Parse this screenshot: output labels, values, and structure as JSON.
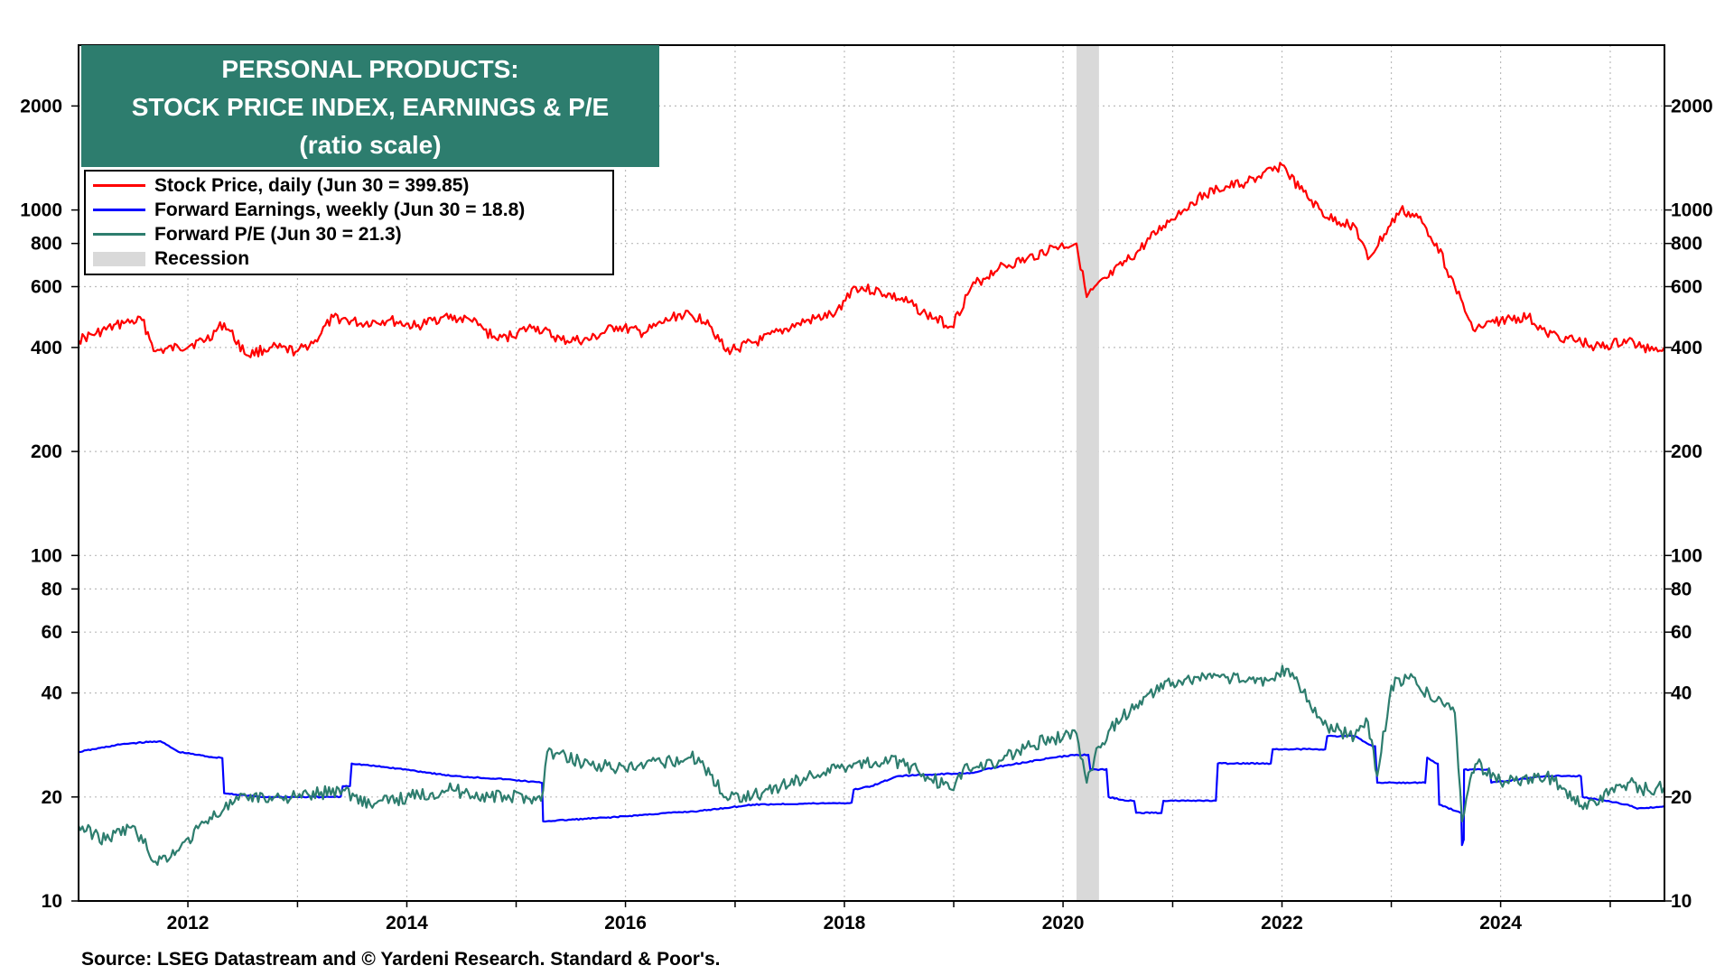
{
  "title": {
    "line1": "PERSONAL PRODUCTS:",
    "line2": "STOCK PRICE INDEX, EARNINGS & P/E",
    "line3": "(ratio scale)"
  },
  "legend": [
    {
      "label": "Stock Price, daily (Jun 30 = 399.85)",
      "color": "#ff0000"
    },
    {
      "label": "Forward Earnings, weekly (Jun 30 = 18.8)",
      "color": "#0000ff"
    },
    {
      "label": "Forward P/E (Jun 30 = 21.3)",
      "color": "#2d7d6e"
    },
    {
      "label": "Recession",
      "color": "#d9d9d9"
    }
  ],
  "source": "Source: LSEG Datastream and © Yardeni Research. Standard & Poor's.",
  "chart_data": {
    "type": "line",
    "yscale": "log",
    "ylim": [
      10,
      3000
    ],
    "xlim": [
      "2011-01-01",
      "2025-07-01"
    ],
    "grid": true,
    "legend_position": "top-left",
    "y_ticks": [
      10,
      20,
      40,
      60,
      80,
      100,
      200,
      400,
      600,
      800,
      1000,
      2000
    ],
    "y_tick_labels": [
      "10",
      "20",
      "40",
      "60",
      "80",
      "100",
      "200",
      "400",
      "600",
      "800",
      "1000",
      "2000"
    ],
    "x_ticks": [
      2012,
      2014,
      2016,
      2018,
      2020,
      2022,
      2024
    ],
    "x_tick_labels": [
      "2012",
      "2014",
      "2016",
      "2018",
      "2020",
      "2022",
      "2024"
    ],
    "recessions": [
      {
        "start": "2020-02-15",
        "end": "2020-04-30"
      }
    ],
    "series": [
      {
        "name": "Stock Price, daily (Jun 30 = 399.85)",
        "color": "#ff0000",
        "x": [
          "2011-01-01",
          "2011-03-01",
          "2011-06-01",
          "2011-08-01",
          "2011-09-15",
          "2011-12-01",
          "2012-03-01",
          "2012-05-01",
          "2012-07-15",
          "2012-10-01",
          "2013-01-01",
          "2013-03-01",
          "2013-05-01",
          "2013-08-01",
          "2013-11-01",
          "2014-02-01",
          "2014-05-01",
          "2014-08-01",
          "2014-11-01",
          "2015-03-01",
          "2015-06-01",
          "2015-09-01",
          "2015-12-01",
          "2016-03-01",
          "2016-07-01",
          "2016-10-01",
          "2016-12-01",
          "2017-04-01",
          "2017-08-01",
          "2017-12-01",
          "2018-02-01",
          "2018-05-01",
          "2018-08-01",
          "2018-10-01",
          "2018-12-25",
          "2019-03-01",
          "2019-06-01",
          "2019-09-01",
          "2019-12-01",
          "2020-02-15",
          "2020-03-20",
          "2020-06-01",
          "2020-09-01",
          "2020-12-01",
          "2021-03-01",
          "2021-06-01",
          "2021-09-01",
          "2021-12-01",
          "2022-01-01",
          "2022-03-01",
          "2022-06-01",
          "2022-09-01",
          "2022-10-15",
          "2023-02-01",
          "2023-04-01",
          "2023-06-01",
          "2023-08-01",
          "2023-10-01",
          "2024-01-01",
          "2024-04-01",
          "2024-06-01",
          "2024-09-01",
          "2024-12-01",
          "2025-03-01",
          "2025-04-15",
          "2025-06-30"
        ],
        "y": [
          420,
          440,
          470,
          480,
          390,
          400,
          420,
          470,
          380,
          400,
          390,
          420,
          490,
          470,
          480,
          460,
          490,
          480,
          420,
          460,
          420,
          420,
          460,
          440,
          500,
          480,
          390,
          420,
          470,
          500,
          600,
          580,
          540,
          500,
          460,
          600,
          680,
          720,
          780,
          800,
          560,
          640,
          750,
          900,
          1050,
          1150,
          1200,
          1300,
          1350,
          1150,
          950,
          900,
          720,
          1000,
          950,
          800,
          600,
          450,
          480,
          490,
          440,
          420,
          400,
          420,
          400,
          400
        ]
      },
      {
        "name": "Forward Earnings, weekly (Jun 30 = 18.8)",
        "color": "#0000ff",
        "x": [
          "2011-01-01",
          "2011-06-01",
          "2011-10-01",
          "2011-12-01",
          "2012-04-01",
          "2012-05-01",
          "2012-09-01",
          "2013-06-01",
          "2013-07-01",
          "2014-01-01",
          "2014-06-01",
          "2014-12-01",
          "2015-03-25",
          "2015-04-01",
          "2015-12-01",
          "2016-06-01",
          "2016-09-01",
          "2017-03-01",
          "2017-12-01",
          "2018-02-01",
          "2018-04-01",
          "2018-07-01",
          "2019-03-01",
          "2019-06-01",
          "2019-12-01",
          "2020-02-15",
          "2020-04-01",
          "2020-06-01",
          "2020-08-01",
          "2020-09-01",
          "2020-12-01",
          "2021-06-01",
          "2021-12-01",
          "2022-06-01",
          "2022-09-01",
          "2022-11-01",
          "2022-11-15",
          "2023-05-01",
          "2023-06-01",
          "2023-06-10",
          "2023-08-20",
          "2023-08-25",
          "2023-08-30",
          "2023-09-01",
          "2023-12-01",
          "2024-06-01",
          "2024-09-01",
          "2024-10-01",
          "2025-03-01",
          "2025-04-01",
          "2025-06-30"
        ],
        "y": [
          27,
          28.5,
          29,
          27,
          26,
          20.5,
          20,
          21.5,
          25,
          24,
          23,
          22.5,
          22,
          17,
          17.5,
          18,
          18.2,
          19,
          19.2,
          21,
          21.5,
          23,
          23.5,
          24.5,
          26,
          26.5,
          24,
          20,
          19.5,
          18,
          19.5,
          25,
          27.5,
          30,
          30,
          28,
          22,
          26,
          25,
          19,
          18,
          14.5,
          15,
          24,
          22,
          23,
          23,
          20,
          19,
          18.5,
          18.8
        ]
      },
      {
        "name": "Forward P/E (Jun 30 = 21.3)",
        "color": "#2d7d6e",
        "x": [
          "2011-01-01",
          "2011-04-01",
          "2011-07-01",
          "2011-09-15",
          "2011-12-01",
          "2012-03-01",
          "2012-05-01",
          "2012-07-15",
          "2012-10-01",
          "2013-01-01",
          "2013-06-01",
          "2013-09-01",
          "2014-01-01",
          "2014-06-01",
          "2014-10-01",
          "2015-03-01",
          "2015-03-25",
          "2015-04-15",
          "2015-09-01",
          "2016-01-01",
          "2016-06-01",
          "2016-09-01",
          "2016-12-01",
          "2017-04-01",
          "2017-09-01",
          "2018-02-01",
          "2018-06-01",
          "2018-09-01",
          "2018-12-25",
          "2019-02-01",
          "2019-06-01",
          "2019-09-01",
          "2019-12-01",
          "2020-02-15",
          "2020-03-20",
          "2020-04-15",
          "2020-06-01",
          "2020-09-01",
          "2020-10-15",
          "2021-01-01",
          "2021-06-01",
          "2021-09-01",
          "2021-12-01",
          "2022-01-15",
          "2022-04-01",
          "2022-06-01",
          "2022-09-01",
          "2022-10-15",
          "2022-11-15",
          "2023-01-01",
          "2023-03-01",
          "2023-06-01",
          "2023-08-01",
          "2023-08-25",
          "2023-09-15",
          "2023-10-15",
          "2024-01-01",
          "2024-06-01",
          "2024-09-01",
          "2024-10-15",
          "2025-01-01",
          "2025-03-01",
          "2025-04-15",
          "2025-06-30"
        ],
        "y": [
          16.5,
          15,
          16.5,
          13,
          14,
          17,
          18.5,
          20,
          20,
          20,
          21,
          19,
          20,
          21,
          20,
          20,
          19.5,
          27,
          25,
          24,
          25.5,
          26,
          20,
          20.5,
          23,
          25,
          25.5,
          24,
          21,
          24,
          25.5,
          28,
          29.5,
          30.5,
          22,
          26,
          31,
          37,
          40,
          43,
          45,
          43,
          44,
          47,
          38,
          32,
          30,
          33,
          23,
          42,
          44,
          38,
          35,
          17,
          21,
          25,
          22,
          23,
          20,
          18.5,
          21,
          22,
          21,
          21.3
        ]
      }
    ]
  }
}
